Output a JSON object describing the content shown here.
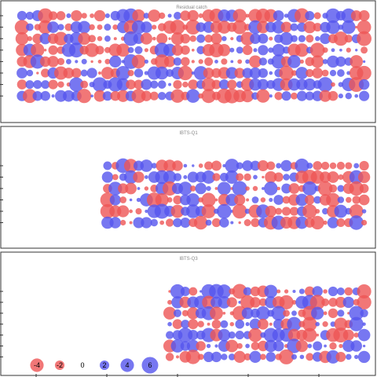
{
  "colors": {
    "positive": "#5555ee",
    "negative": "#ee5555"
  },
  "chart_data": {
    "type": "scatter",
    "subtype": "bubble residual plot",
    "panels": [
      {
        "title": "Residual catch",
        "ages": 8,
        "years": 45,
        "first_year_index": 0
      },
      {
        "title": "IBTS-Q1",
        "ages": 6,
        "years": 34,
        "first_year_index": 11
      },
      {
        "title": "IBTS-Q3",
        "ages": 7,
        "years": 26,
        "first_year_index": 19
      }
    ],
    "legend": [
      {
        "value": -4,
        "label": "-4"
      },
      {
        "value": -2,
        "label": "-2"
      },
      {
        "value": 0,
        "label": "0"
      },
      {
        "value": 2,
        "label": "2"
      },
      {
        "value": 4,
        "label": "4"
      },
      {
        "value": 6,
        "label": "6"
      }
    ],
    "size_scale_max": 6
  }
}
